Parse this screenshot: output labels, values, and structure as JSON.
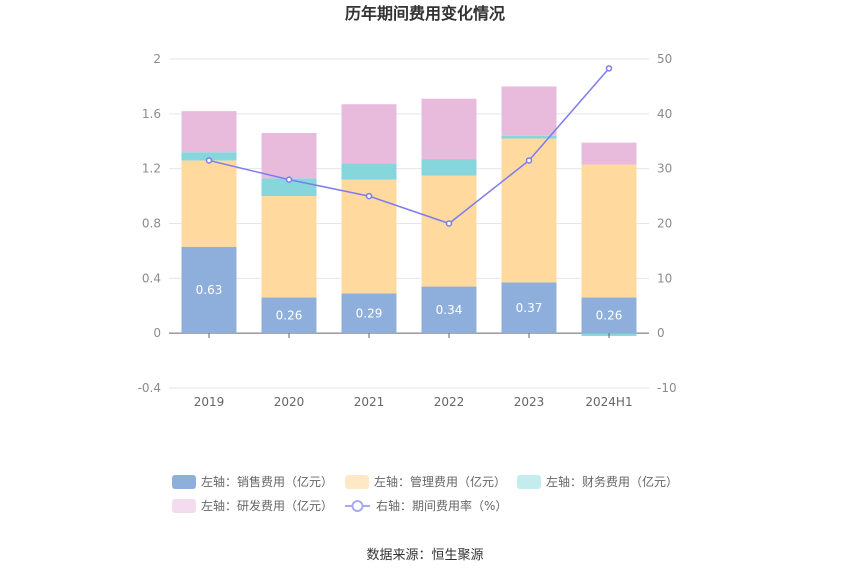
{
  "chart_data": {
    "type": "bar",
    "title": "历年期间费用变化情况",
    "categories": [
      "2019",
      "2020",
      "2021",
      "2022",
      "2023",
      "2024H1"
    ],
    "left_axis": {
      "ylim": [
        -0.4,
        2
      ],
      "ticks": [
        "-0.4",
        "0",
        "0.4",
        "0.8",
        "1.2",
        "1.6",
        "2"
      ]
    },
    "right_axis": {
      "ylim": [
        -10,
        50
      ],
      "ticks": [
        "-10",
        "0",
        "10",
        "20",
        "30",
        "40",
        "50"
      ]
    },
    "series": [
      {
        "name": "左轴：销售费用（亿元）",
        "type": "bar",
        "axis": "left",
        "color": "#8eaedc",
        "values": [
          0.63,
          0.26,
          0.29,
          0.34,
          0.37,
          0.26
        ],
        "data_labels": [
          "0.63",
          "0.26",
          "0.29",
          "0.34",
          "0.37",
          "0.26"
        ]
      },
      {
        "name": "左轴：管理费用（亿元）",
        "type": "bar",
        "axis": "left",
        "color": "#ffd99e",
        "values": [
          0.63,
          0.74,
          0.83,
          0.81,
          1.05,
          0.97
        ]
      },
      {
        "name": "左轴：财务费用（亿元）",
        "type": "bar",
        "axis": "left",
        "color": "#86d6dc",
        "values": [
          0.06,
          0.13,
          0.12,
          0.12,
          0.02,
          -0.02
        ]
      },
      {
        "name": "左轴：研发费用（亿元）",
        "type": "bar",
        "axis": "left",
        "color": "#e8bbdc",
        "values": [
          0.3,
          0.33,
          0.43,
          0.44,
          0.36,
          0.16
        ]
      },
      {
        "name": "右轴：期间费用率（%）",
        "type": "line",
        "axis": "right",
        "color": "#7b7cf0",
        "values": [
          31.5,
          28.0,
          25.0,
          20.0,
          31.5,
          48.3
        ]
      }
    ],
    "legend_position": "bottom",
    "grid": true
  },
  "legend_colors": {
    "sales": "#8eaedc",
    "mgmt": "#ffe8c6",
    "finance": "#c4ecee",
    "rd": "#f3dcee",
    "rate": "#a9aaf6"
  },
  "source": "数据来源：恒生聚源"
}
